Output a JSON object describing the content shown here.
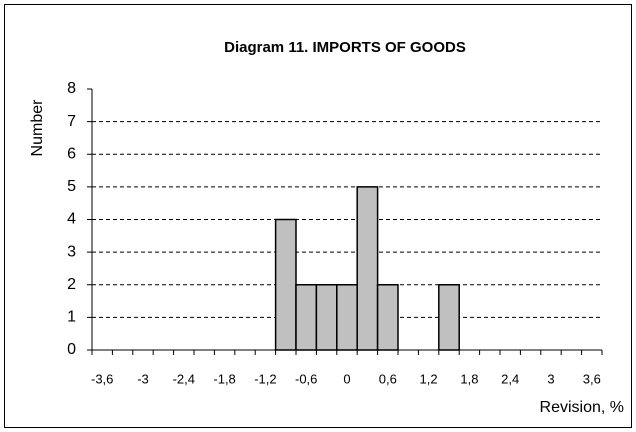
{
  "chart_data": {
    "type": "bar",
    "title": "Diagram 11.  IMPORTS OF GOODS",
    "y_label": "Number",
    "x_label": "Revision, %",
    "categories": [
      "-3,6",
      null,
      "-3",
      null,
      "-2,4",
      null,
      "-1,8",
      null,
      "-1,2",
      null,
      "-0,6",
      null,
      "0",
      null,
      "0,6",
      null,
      "1,2",
      null,
      "1,8",
      null,
      "2,4",
      null,
      "3",
      null,
      "3,6"
    ],
    "values": [
      0,
      0,
      0,
      0,
      0,
      0,
      0,
      0,
      0,
      4,
      2,
      2,
      2,
      5,
      2,
      0,
      0,
      2,
      0,
      0,
      0,
      0,
      0,
      0,
      0
    ],
    "color": "#c0c0c0",
    "ylim": [
      0,
      8
    ],
    "yticks": [
      0,
      1,
      2,
      3,
      4,
      5,
      6,
      7,
      8
    ],
    "grid": true
  }
}
